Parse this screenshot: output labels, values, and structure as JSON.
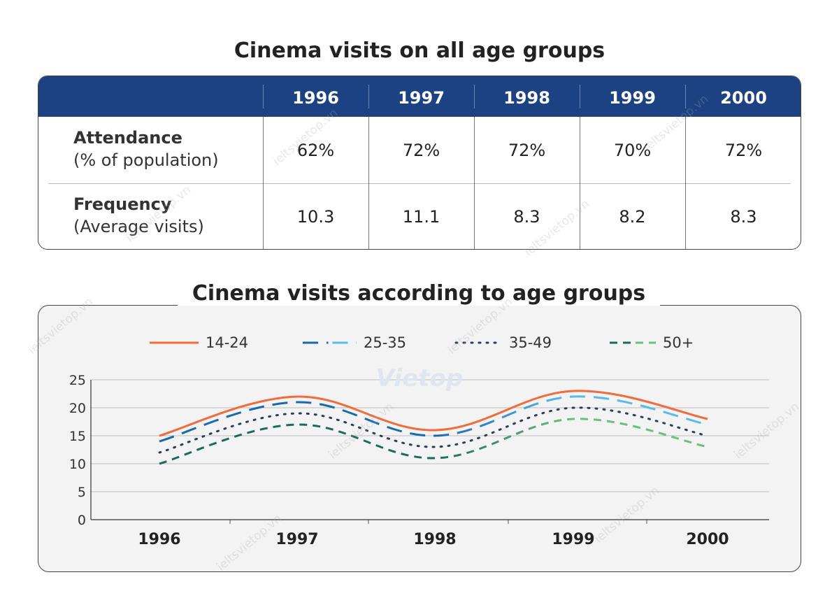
{
  "table_title": "Cinema visits on all age groups",
  "table": {
    "columns": [
      "1996",
      "1997",
      "1998",
      "1999",
      "2000"
    ],
    "rows": [
      {
        "label_bold": "Attendance",
        "label_sub": "(% of population)",
        "values": [
          "62%",
          "72%",
          "72%",
          "70%",
          "72%"
        ]
      },
      {
        "label_bold": "Frequency",
        "label_sub": "(Average visits)",
        "values": [
          "10.3",
          "11.1",
          "8.3",
          "8.2",
          "8.3"
        ]
      }
    ]
  },
  "watermark": "ieltsvietop.vn",
  "logo_text": "Vietop",
  "chart_data": {
    "type": "line",
    "title": "Cinema visits according to age groups",
    "categories": [
      "1996",
      "1997",
      "1998",
      "1999",
      "2000"
    ],
    "ylim": [
      0,
      25
    ],
    "yticks": [
      0,
      5,
      10,
      15,
      20,
      25
    ],
    "grid": true,
    "legend_position": "top",
    "series": [
      {
        "name": "14-24",
        "values": [
          15,
          22,
          16,
          23,
          18
        ],
        "color": "#f26b3a",
        "style": "solid"
      },
      {
        "name": "25-35",
        "values": [
          14,
          21,
          15,
          22,
          17
        ],
        "colors": [
          "#1a6aab",
          "#5bbbe8"
        ],
        "style": "long-dash"
      },
      {
        "name": "35-49",
        "values": [
          12,
          19,
          13,
          20,
          15
        ],
        "color": "#2b3d57",
        "style": "dotted"
      },
      {
        "name": "50+",
        "values": [
          10,
          17,
          11,
          18,
          13
        ],
        "colors": [
          "#1d6a5c",
          "#6cc07a"
        ],
        "style": "dash"
      }
    ]
  }
}
